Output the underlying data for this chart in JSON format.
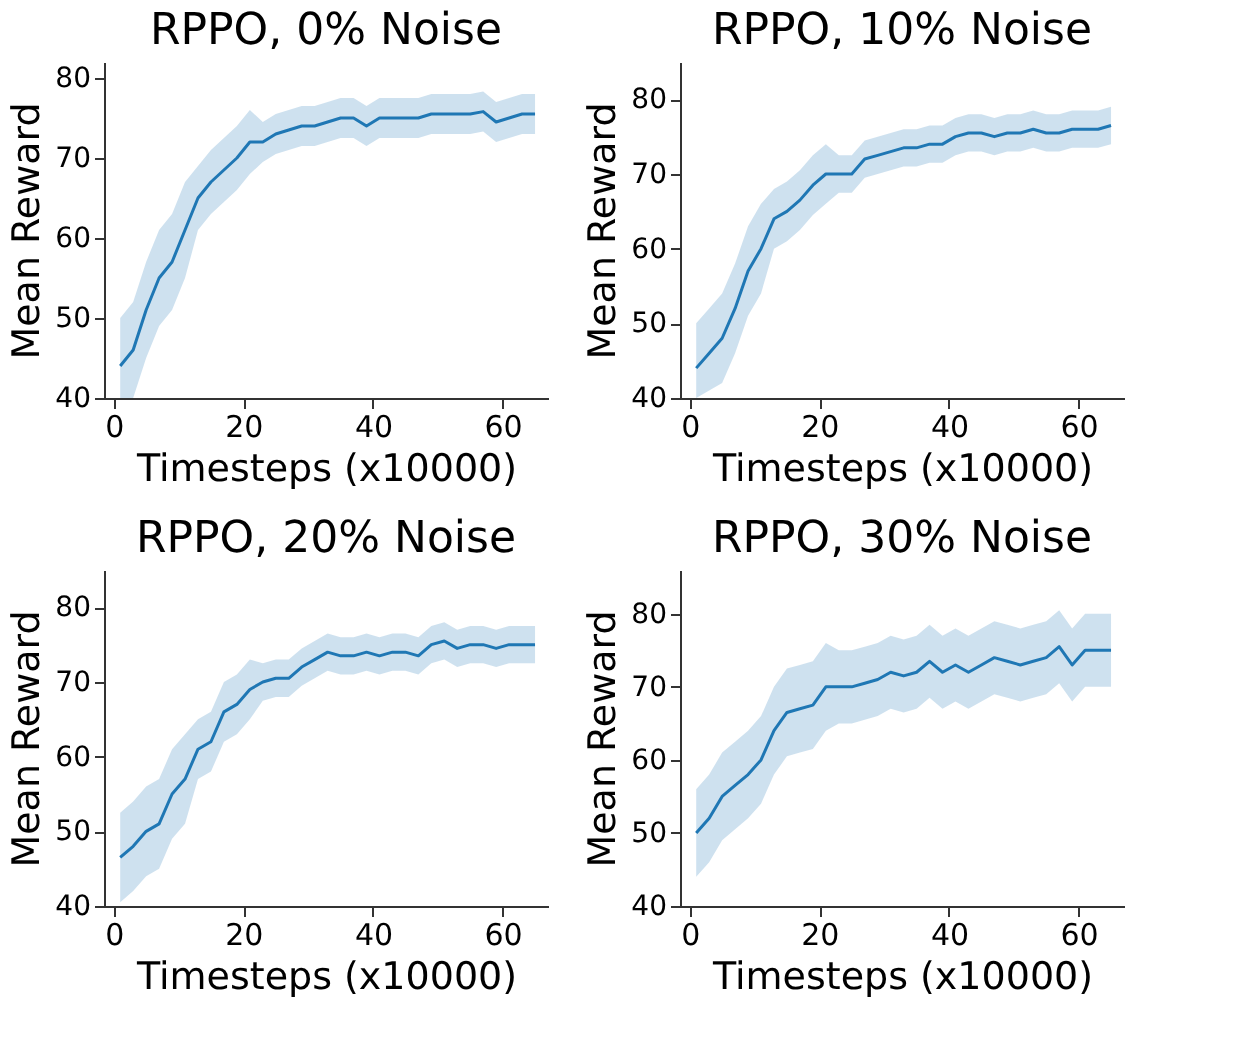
{
  "chart_data": [
    {
      "type": "line",
      "title": "RPPO, 0% Noise",
      "xlabel": "Timesteps (x10000)",
      "ylabel": "Mean Reward",
      "xlim": [
        -1.5,
        67
      ],
      "xticks": [
        0,
        20,
        40,
        60
      ],
      "ylim": [
        40,
        82
      ],
      "yticks": [
        40,
        50,
        60,
        70,
        80
      ],
      "x": [
        1,
        3,
        5,
        7,
        9,
        11,
        13,
        15,
        17,
        19,
        21,
        23,
        25,
        27,
        29,
        31,
        33,
        35,
        37,
        39,
        41,
        43,
        45,
        47,
        49,
        51,
        53,
        55,
        57,
        59,
        61,
        63,
        65
      ],
      "series": [
        {
          "color": "#1f77b4",
          "values": [
            44,
            46,
            51,
            55,
            57,
            61,
            65,
            67,
            68.5,
            70,
            72,
            72,
            73,
            73.5,
            74,
            74,
            74.5,
            75,
            75,
            74,
            75,
            75,
            75,
            75,
            75.5,
            75.5,
            75.5,
            75.5,
            75.8,
            74.5,
            75,
            75.5,
            75.5
          ],
          "lower": [
            40,
            40,
            45,
            49,
            51,
            55,
            61,
            63,
            64.5,
            66,
            68,
            69.5,
            70.5,
            71,
            71.5,
            71.5,
            72,
            72.5,
            72.5,
            71.5,
            72.5,
            72.5,
            72.5,
            72.5,
            73,
            73,
            73,
            73,
            73.3,
            72,
            72.5,
            73,
            73
          ],
          "upper": [
            50,
            52,
            57,
            61,
            63,
            67,
            69,
            71,
            72.5,
            74,
            76,
            74.5,
            75.5,
            76,
            76.5,
            76.5,
            77,
            77.5,
            77.5,
            76.5,
            77.5,
            77.5,
            77.5,
            77.5,
            78,
            78,
            78,
            78,
            78.3,
            77,
            77.5,
            78,
            78
          ]
        }
      ]
    },
    {
      "type": "line",
      "title": "RPPO, 10% Noise",
      "xlabel": "Timesteps (x10000)",
      "ylabel": "Mean Reward",
      "xlim": [
        -1.5,
        67
      ],
      "xticks": [
        0,
        20,
        40,
        60
      ],
      "ylim": [
        40,
        85
      ],
      "yticks": [
        40,
        50,
        60,
        70,
        80
      ],
      "x": [
        1,
        3,
        5,
        7,
        9,
        11,
        13,
        15,
        17,
        19,
        21,
        23,
        25,
        27,
        29,
        31,
        33,
        35,
        37,
        39,
        41,
        43,
        45,
        47,
        49,
        51,
        53,
        55,
        57,
        59,
        61,
        63,
        65
      ],
      "series": [
        {
          "color": "#1f77b4",
          "values": [
            44,
            46,
            48,
            52,
            57,
            60,
            64,
            65,
            66.5,
            68.5,
            70,
            70,
            70,
            72,
            72.5,
            73,
            73.5,
            73.5,
            74,
            74,
            75,
            75.5,
            75.5,
            75,
            75.5,
            75.5,
            76,
            75.5,
            75.5,
            76,
            76,
            76,
            76.5
          ],
          "lower": [
            40,
            41,
            42,
            46,
            51,
            54,
            60,
            61,
            62.5,
            64.5,
            66,
            67.5,
            67.5,
            69.5,
            70,
            70.5,
            71,
            71,
            71.5,
            71.5,
            72.5,
            73,
            73,
            72.5,
            73,
            73,
            73.5,
            73,
            73,
            73.5,
            73.5,
            73.5,
            74
          ],
          "upper": [
            50,
            52,
            54,
            58,
            63,
            66,
            68,
            69,
            70.5,
            72.5,
            74,
            72.5,
            72.5,
            74.5,
            75,
            75.5,
            76,
            76,
            76.5,
            76.5,
            77.5,
            78,
            78,
            77.5,
            78,
            78,
            78.5,
            78,
            78,
            78.5,
            78.5,
            78.5,
            79
          ]
        }
      ]
    },
    {
      "type": "line",
      "title": "RPPO, 20% Noise",
      "xlabel": "Timesteps (x10000)",
      "ylabel": "Mean Reward",
      "xlim": [
        -1.5,
        67
      ],
      "xticks": [
        0,
        20,
        40,
        60
      ],
      "ylim": [
        40,
        85
      ],
      "yticks": [
        40,
        50,
        60,
        70,
        80
      ],
      "x": [
        1,
        3,
        5,
        7,
        9,
        11,
        13,
        15,
        17,
        19,
        21,
        23,
        25,
        27,
        29,
        31,
        33,
        35,
        37,
        39,
        41,
        43,
        45,
        47,
        49,
        51,
        53,
        55,
        57,
        59,
        61,
        63,
        65
      ],
      "series": [
        {
          "color": "#1f77b4",
          "values": [
            46.5,
            48,
            50,
            51,
            55,
            57,
            61,
            62,
            66,
            67,
            69,
            70,
            70.5,
            70.5,
            72,
            73,
            74,
            73.5,
            73.5,
            74,
            73.5,
            74,
            74,
            73.5,
            75,
            75.5,
            74.5,
            75,
            75,
            74.5,
            75,
            75,
            75
          ],
          "lower": [
            40.5,
            42,
            44,
            45,
            49,
            51,
            57,
            58,
            62,
            63,
            65,
            67.5,
            68,
            68,
            69.5,
            70.5,
            71.5,
            71,
            71,
            71.5,
            71,
            71.5,
            71.5,
            71,
            72.5,
            73,
            72,
            72.5,
            72.5,
            72,
            72.5,
            72.5,
            72.5
          ],
          "upper": [
            52.5,
            54,
            56,
            57,
            61,
            63,
            65,
            66,
            70,
            71,
            73,
            72.5,
            73,
            73,
            74.5,
            75.5,
            76.5,
            76,
            76,
            76.5,
            76,
            76.5,
            76.5,
            76,
            77.5,
            78,
            77,
            77.5,
            77.5,
            77,
            77.5,
            77.5,
            77.5
          ]
        }
      ]
    },
    {
      "type": "line",
      "title": "RPPO, 30% Noise",
      "xlabel": "Timesteps (x10000)",
      "ylabel": "Mean Reward",
      "xlim": [
        -1.5,
        67
      ],
      "xticks": [
        0,
        20,
        40,
        60
      ],
      "ylim": [
        40,
        86
      ],
      "yticks": [
        40,
        50,
        60,
        70,
        80
      ],
      "x": [
        1,
        3,
        5,
        7,
        9,
        11,
        13,
        15,
        17,
        19,
        21,
        23,
        25,
        27,
        29,
        31,
        33,
        35,
        37,
        39,
        41,
        43,
        45,
        47,
        49,
        51,
        53,
        55,
        57,
        59,
        61,
        63,
        65
      ],
      "series": [
        {
          "color": "#1f77b4",
          "values": [
            50,
            52,
            55,
            56.5,
            58,
            60,
            64,
            66.5,
            67,
            67.5,
            70,
            70,
            70,
            70.5,
            71,
            72,
            71.5,
            72,
            73.5,
            72,
            73,
            72,
            73,
            74,
            73.5,
            73,
            73.5,
            74,
            75.5,
            73,
            75,
            75,
            75
          ],
          "lower": [
            44,
            46,
            49,
            50.5,
            52,
            54,
            58,
            60.5,
            61,
            61.5,
            64,
            65,
            65,
            65.5,
            66,
            67,
            66.5,
            67,
            68.5,
            67,
            68,
            67,
            68,
            69,
            68.5,
            68,
            68.5,
            69,
            70.5,
            68,
            70,
            70,
            70
          ],
          "upper": [
            56,
            58,
            61,
            62.5,
            64,
            66,
            70,
            72.5,
            73,
            73.5,
            76,
            75,
            75,
            75.5,
            76,
            77,
            76.5,
            77,
            78.5,
            77,
            78,
            77,
            78,
            79,
            78.5,
            78,
            78.5,
            79,
            80.5,
            78,
            80,
            80,
            80
          ]
        }
      ]
    }
  ]
}
